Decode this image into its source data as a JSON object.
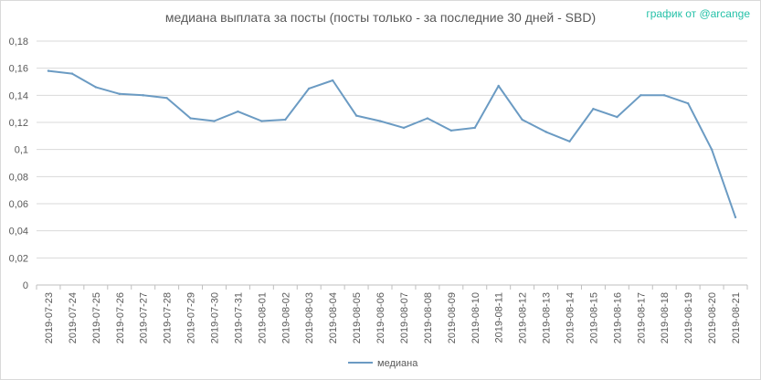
{
  "title": "медиана выплата за посты  (посты только - за последние 30 дней - SBD)",
  "credit": "график от @arcange",
  "chart_data": {
    "type": "line",
    "title": "медиана выплата за посты  (посты только - за последние 30 дней - SBD)",
    "xlabel": "",
    "ylabel": "",
    "ylim": [
      0,
      0.18
    ],
    "ytick_step": 0.02,
    "grid": true,
    "legend_position": "bottom",
    "colors": {
      "line": "#6b9bc3",
      "grid": "#d9d9d9",
      "axis": "#bfbfbf"
    },
    "x": [
      "2019-07-23",
      "2019-07-24",
      "2019-07-25",
      "2019-07-26",
      "2019-07-27",
      "2019-07-28",
      "2019-07-29",
      "2019-07-30",
      "2019-07-31",
      "2019-08-01",
      "2019-08-02",
      "2019-08-03",
      "2019-08-04",
      "2019-08-05",
      "2019-08-06",
      "2019-08-07",
      "2019-08-08",
      "2019-08-09",
      "2019-08-10",
      "2019-08-11",
      "2019-08-12",
      "2019-08-13",
      "2019-08-14",
      "2019-08-15",
      "2019-08-16",
      "2019-08-17",
      "2019-08-18",
      "2019-08-19",
      "2019-08-20",
      "2019-08-21"
    ],
    "series": [
      {
        "name": "медиана",
        "values": [
          0.158,
          0.156,
          0.146,
          0.141,
          0.14,
          0.138,
          0.123,
          0.121,
          0.128,
          0.121,
          0.122,
          0.145,
          0.151,
          0.125,
          0.121,
          0.116,
          0.123,
          0.114,
          0.116,
          0.147,
          0.122,
          0.113,
          0.106,
          0.13,
          0.124,
          0.14,
          0.14,
          0.134,
          0.1,
          0.05
        ]
      }
    ]
  }
}
